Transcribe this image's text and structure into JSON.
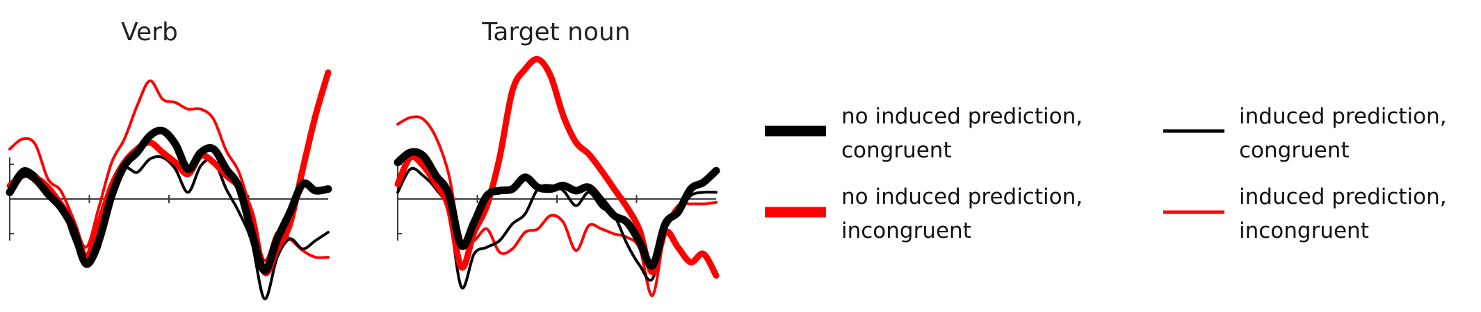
{
  "chart_data": [
    {
      "type": "line",
      "title": "Verb",
      "xlabel": "",
      "ylabel": "",
      "x": [
        0,
        4,
        8,
        12,
        16,
        20,
        24,
        28,
        32,
        36,
        40,
        44,
        48,
        52,
        56,
        60,
        64,
        68,
        72,
        76,
        80,
        84,
        88,
        92,
        96,
        100
      ],
      "ylim": [
        -7,
        9
      ],
      "series": [
        {
          "key": "np_con",
          "values": [
            0.4,
            1.5,
            1.2,
            0.3,
            -0.5,
            -1.8,
            -3.9,
            -2.5,
            0.2,
            2.0,
            2.8,
            3.8,
            4.1,
            3.3,
            1.8,
            2.8,
            3.0,
            1.8,
            0.7,
            -2.0,
            -4.3,
            -2.4,
            -0.8,
            0.9,
            0.5,
            0.6
          ]
        },
        {
          "key": "ip_con",
          "values": [
            0.8,
            1.8,
            1.5,
            0.6,
            -0.3,
            -2.4,
            -4.0,
            -3.0,
            0.0,
            1.8,
            1.6,
            2.4,
            2.5,
            1.8,
            0.4,
            2.0,
            2.3,
            0.6,
            -0.8,
            -2.6,
            -6.0,
            -3.5,
            -2.4,
            -3.0,
            -2.5,
            -2.0
          ]
        },
        {
          "key": "np_inc",
          "values": [
            0.8,
            1.4,
            1.3,
            0.7,
            -0.3,
            -1.5,
            -3.5,
            -1.5,
            0.8,
            2.2,
            3.0,
            3.4,
            2.8,
            2.2,
            1.5,
            2.6,
            2.2,
            1.4,
            0.7,
            -1.0,
            -4.4,
            -3.0,
            -1.5,
            1.8,
            5.0,
            7.6
          ]
        },
        {
          "key": "ip_inc",
          "values": [
            3.0,
            3.6,
            3.3,
            1.2,
            0.5,
            -1.2,
            -2.9,
            -0.5,
            2.2,
            3.6,
            5.6,
            7.1,
            6.0,
            5.8,
            5.4,
            5.4,
            4.8,
            2.9,
            1.6,
            -0.9,
            -3.7,
            -2.0,
            -2.4,
            -3.1,
            -3.5,
            -3.5
          ]
        }
      ]
    },
    {
      "type": "line",
      "title": "Target noun",
      "xlabel": "",
      "ylabel": "",
      "x": [
        0,
        4,
        8,
        12,
        16,
        20,
        24,
        28,
        32,
        36,
        40,
        44,
        48,
        52,
        56,
        60,
        64,
        68,
        72,
        76,
        80,
        84,
        88,
        92,
        96,
        100
      ],
      "ylim": [
        -7,
        9
      ],
      "series": [
        {
          "key": "np_con",
          "values": [
            2.2,
            2.8,
            2.6,
            1.4,
            0.3,
            -2.8,
            -1.4,
            0.2,
            0.5,
            0.6,
            1.3,
            0.7,
            0.6,
            0.8,
            0.5,
            0.7,
            -0.1,
            -1.0,
            -1.4,
            -2.6,
            -4.0,
            -1.5,
            -0.8,
            0.6,
            1.0,
            1.7
          ]
        },
        {
          "key": "ip_con",
          "values": [
            0.4,
            1.8,
            1.4,
            0.6,
            -0.8,
            -5.3,
            -3.3,
            -2.9,
            -2.5,
            -1.5,
            -0.9,
            0.6,
            0.8,
            0.5,
            -0.4,
            0.4,
            -0.5,
            -1.0,
            -2.7,
            -4.0,
            -4.8,
            -1.9,
            -0.8,
            0.2,
            0.4,
            0.4
          ]
        },
        {
          "key": "np_inc",
          "values": [
            0.9,
            2.5,
            2.0,
            0.9,
            -0.5,
            -4.1,
            -2.0,
            -0.4,
            2.5,
            6.5,
            7.8,
            8.4,
            7.4,
            5.0,
            3.4,
            2.7,
            1.7,
            0.6,
            -0.5,
            -1.9,
            -4.4,
            -2.0,
            -2.9,
            -3.8,
            -3.3,
            -4.6
          ]
        },
        {
          "key": "ip_inc",
          "values": [
            4.5,
            4.9,
            4.8,
            3.7,
            1.5,
            -2.5,
            -2.5,
            -1.8,
            -3.2,
            -3.0,
            -2.0,
            -1.8,
            -1.0,
            -1.4,
            -3.1,
            -1.6,
            -1.8,
            -2.1,
            -2.3,
            -3.0,
            -5.8,
            -1.9,
            -0.4,
            -0.3,
            -0.3,
            -0.2
          ]
        }
      ]
    }
  ],
  "legend": [
    {
      "key": "np_con",
      "lines": [
        "no induced prediction,",
        "congruent"
      ],
      "color": "#000000",
      "weight": "thick"
    },
    {
      "key": "ip_con",
      "lines": [
        "induced prediction,",
        "congruent"
      ],
      "color": "#000000",
      "weight": "thin"
    },
    {
      "key": "np_inc",
      "lines": [
        "no induced prediction,",
        "incongruent"
      ],
      "color": "#ff0000",
      "weight": "thick"
    },
    {
      "key": "ip_inc",
      "lines": [
        "induced prediction,",
        "incongruent"
      ],
      "color": "#ff0000",
      "weight": "thin"
    }
  ],
  "colors": {
    "black": "#000000",
    "red": "#ff0000",
    "axis": "#3a3a3a"
  }
}
